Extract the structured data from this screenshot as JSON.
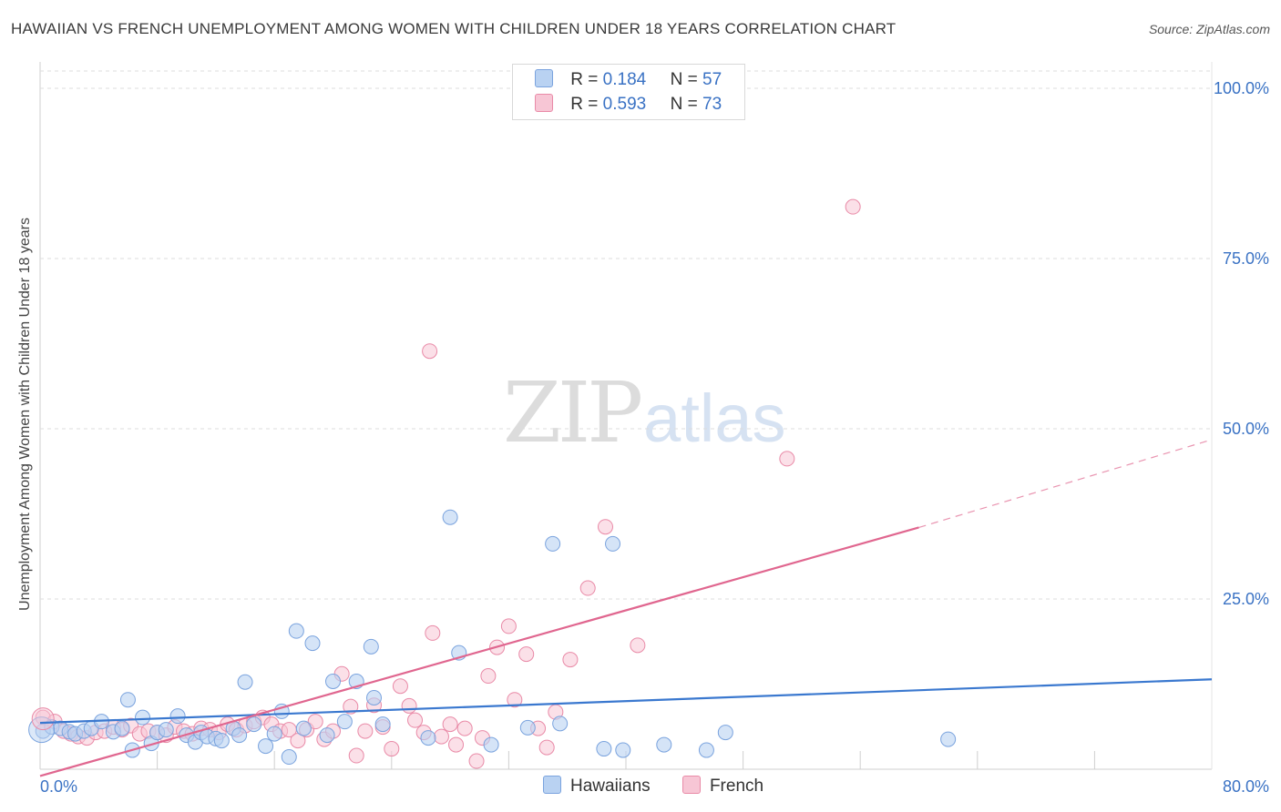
{
  "header": {
    "title": "HAWAIIAN VS FRENCH UNEMPLOYMENT AMONG WOMEN WITH CHILDREN UNDER 18 YEARS CORRELATION CHART",
    "source": "Source: ZipAtlas.com"
  },
  "watermark": {
    "zip": "ZIP",
    "atlas": "atlas"
  },
  "legend": {
    "rows": [
      {
        "r_label": "R =",
        "r_value": "0.184",
        "n_label": "N =",
        "n_value": "57"
      },
      {
        "r_label": "R =",
        "r_value": "0.593",
        "n_label": "N =",
        "n_value": "73"
      }
    ]
  },
  "bottom_legend": {
    "hawaiians": "Hawaiians",
    "french": "French"
  },
  "colors": {
    "hawaiians_fill": "#b9d2f2",
    "hawaiians_stroke": "#7aa3de",
    "hawaiians_line": "#3a78cf",
    "french_fill": "#f7c6d5",
    "french_stroke": "#e98aa7",
    "french_line": "#e0668f",
    "axis_label": "#3a72c4",
    "grid": "#dcdcdc"
  },
  "chart_data": {
    "type": "scatter",
    "title": "HAWAIIAN VS FRENCH UNEMPLOYMENT AMONG WOMEN WITH CHILDREN UNDER 18 YEARS CORRELATION CHART",
    "xlabel": "",
    "ylabel": "Unemployment Among Women with Children Under 18 years",
    "xlim": [
      0,
      80
    ],
    "ylim": [
      0,
      100
    ],
    "x_tick_labels": [
      "0.0%",
      "80.0%"
    ],
    "y_tick_labels": [
      "100.0%",
      "75.0%",
      "50.0%",
      "25.0%"
    ],
    "y_ticks": [
      100,
      75,
      50,
      25
    ],
    "grid": true,
    "series": [
      {
        "name": "Hawaiians",
        "r": 0.184,
        "n": 57,
        "trend": {
          "x0": 0,
          "y0": 6.8,
          "x1": 80,
          "y1": 13.2
        },
        "points": [
          [
            0.2,
            5.6
          ],
          [
            0.8,
            6.2
          ],
          [
            1.4,
            6.0
          ],
          [
            2.0,
            5.5
          ],
          [
            2.4,
            5.2
          ],
          [
            3.0,
            5.6
          ],
          [
            3.5,
            6.0
          ],
          [
            4.2,
            7.0
          ],
          [
            5.0,
            5.5
          ],
          [
            5.6,
            6.0
          ],
          [
            6.0,
            10.2
          ],
          [
            6.3,
            2.8
          ],
          [
            7.0,
            7.6
          ],
          [
            7.6,
            3.8
          ],
          [
            8.0,
            5.4
          ],
          [
            8.6,
            5.8
          ],
          [
            9.4,
            7.8
          ],
          [
            10.0,
            5.0
          ],
          [
            10.6,
            4.0
          ],
          [
            11.0,
            5.4
          ],
          [
            11.4,
            4.8
          ],
          [
            12.0,
            4.5
          ],
          [
            12.4,
            4.2
          ],
          [
            13.2,
            6.0
          ],
          [
            13.6,
            5.0
          ],
          [
            14.0,
            12.8
          ],
          [
            14.6,
            6.6
          ],
          [
            15.4,
            3.4
          ],
          [
            16.0,
            5.2
          ],
          [
            16.5,
            8.5
          ],
          [
            17.0,
            1.8
          ],
          [
            17.5,
            20.3
          ],
          [
            18.0,
            6.0
          ],
          [
            18.6,
            18.5
          ],
          [
            19.6,
            5.0
          ],
          [
            20.0,
            12.9
          ],
          [
            20.8,
            7.0
          ],
          [
            21.6,
            12.9
          ],
          [
            22.6,
            18.0
          ],
          [
            22.8,
            10.5
          ],
          [
            23.4,
            6.6
          ],
          [
            26.5,
            4.6
          ],
          [
            28.0,
            37.0
          ],
          [
            28.6,
            17.1
          ],
          [
            30.8,
            3.6
          ],
          [
            33.3,
            6.1
          ],
          [
            35.0,
            33.1
          ],
          [
            35.5,
            6.7
          ],
          [
            39.1,
            33.1
          ],
          [
            38.5,
            3.0
          ],
          [
            39.8,
            2.8
          ],
          [
            42.6,
            3.6
          ],
          [
            45.5,
            2.8
          ],
          [
            46.8,
            5.4
          ],
          [
            62.0,
            4.4
          ]
        ]
      },
      {
        "name": "French",
        "r": 0.593,
        "n": 73,
        "trend": {
          "x0": 0,
          "y0": -1.0,
          "x1": 60,
          "y1": 35.5,
          "dash_to_x": 80,
          "dash_to_y": 48.4
        },
        "points": [
          [
            0.2,
            7.6
          ],
          [
            1.0,
            7.0
          ],
          [
            1.6,
            5.6
          ],
          [
            2.1,
            5.2
          ],
          [
            2.6,
            4.8
          ],
          [
            3.2,
            4.6
          ],
          [
            3.8,
            5.4
          ],
          [
            4.4,
            5.6
          ],
          [
            5.0,
            6.2
          ],
          [
            5.6,
            5.8
          ],
          [
            6.2,
            6.4
          ],
          [
            6.8,
            5.2
          ],
          [
            7.4,
            5.6
          ],
          [
            8.0,
            5.4
          ],
          [
            8.6,
            5.0
          ],
          [
            9.2,
            6.2
          ],
          [
            9.8,
            5.6
          ],
          [
            10.4,
            5.2
          ],
          [
            11.0,
            6.0
          ],
          [
            11.6,
            5.8
          ],
          [
            12.2,
            5.4
          ],
          [
            12.8,
            6.6
          ],
          [
            13.4,
            5.8
          ],
          [
            14.0,
            6.4
          ],
          [
            14.6,
            7.0
          ],
          [
            15.2,
            7.6
          ],
          [
            15.8,
            6.6
          ],
          [
            16.4,
            5.6
          ],
          [
            17.0,
            5.8
          ],
          [
            17.6,
            4.2
          ],
          [
            18.2,
            5.8
          ],
          [
            18.8,
            7.0
          ],
          [
            19.4,
            4.4
          ],
          [
            20.0,
            5.6
          ],
          [
            20.6,
            14.0
          ],
          [
            21.2,
            9.2
          ],
          [
            21.6,
            2.0
          ],
          [
            22.2,
            5.6
          ],
          [
            22.8,
            9.4
          ],
          [
            23.4,
            6.2
          ],
          [
            24.0,
            3.0
          ],
          [
            24.6,
            12.2
          ],
          [
            25.2,
            9.3
          ],
          [
            25.6,
            7.2
          ],
          [
            26.2,
            5.4
          ],
          [
            26.6,
            61.4
          ],
          [
            26.8,
            20.0
          ],
          [
            27.4,
            4.8
          ],
          [
            28.0,
            6.6
          ],
          [
            28.4,
            3.6
          ],
          [
            29.0,
            6.0
          ],
          [
            29.8,
            1.2
          ],
          [
            30.2,
            4.6
          ],
          [
            30.6,
            13.7
          ],
          [
            31.2,
            17.9
          ],
          [
            32.0,
            21.0
          ],
          [
            32.4,
            10.2
          ],
          [
            33.2,
            16.9
          ],
          [
            34.0,
            6.0
          ],
          [
            34.6,
            3.2
          ],
          [
            35.2,
            8.4
          ],
          [
            36.2,
            16.1
          ],
          [
            37.4,
            26.6
          ],
          [
            38.6,
            35.6
          ],
          [
            40.8,
            18.2
          ],
          [
            51.0,
            45.6
          ],
          [
            55.5,
            82.6
          ]
        ]
      }
    ]
  }
}
